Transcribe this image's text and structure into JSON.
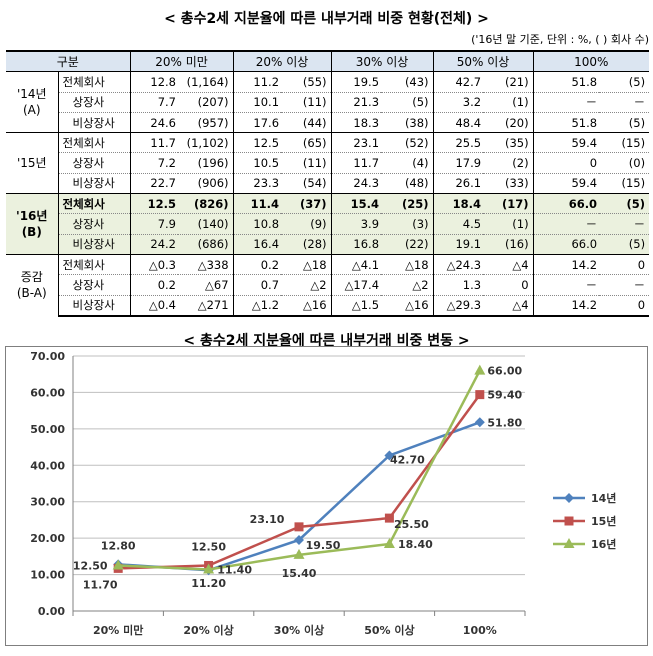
{
  "table_title": "< 총수2세 지분율에 따른 내부거래 비중 현황(전체) >",
  "unit_note": "('16년 말 기준, 단위 : %, ( ) 회사 수)",
  "table": {
    "headers": [
      "구분",
      "20% 미만",
      "20% 이상",
      "30% 이상",
      "50% 이상",
      "100%"
    ],
    "groups": [
      {
        "label": "'14년\n(A)",
        "rows": [
          {
            "name": "전체회사",
            "cells": [
              [
                "12.8",
                "(1,164)"
              ],
              [
                "11.2",
                "(55)"
              ],
              [
                "19.5",
                "(43)"
              ],
              [
                "42.7",
                "(21)"
              ],
              [
                "51.8",
                "(5)"
              ]
            ]
          },
          {
            "name": "상장사",
            "cells": [
              [
                "7.7",
                "(207)"
              ],
              [
                "10.1",
                "(11)"
              ],
              [
                "21.3",
                "(5)"
              ],
              [
                "3.2",
                "(1)"
              ],
              [
                "－",
                "－"
              ]
            ]
          },
          {
            "name": "비상장사",
            "cells": [
              [
                "24.6",
                "(957)"
              ],
              [
                "17.6",
                "(44)"
              ],
              [
                "18.3",
                "(38)"
              ],
              [
                "48.4",
                "(20)"
              ],
              [
                "51.8",
                "(5)"
              ]
            ]
          }
        ]
      },
      {
        "label": "'15년",
        "rows": [
          {
            "name": "전체회사",
            "cells": [
              [
                "11.7",
                "(1,102)"
              ],
              [
                "12.5",
                "(65)"
              ],
              [
                "23.1",
                "(52)"
              ],
              [
                "25.5",
                "(35)"
              ],
              [
                "59.4",
                "(15)"
              ]
            ]
          },
          {
            "name": "상장사",
            "cells": [
              [
                "7.2",
                "(196)"
              ],
              [
                "10.5",
                "(11)"
              ],
              [
                "11.7",
                "(4)"
              ],
              [
                "17.9",
                "(2)"
              ],
              [
                "0",
                "(0)"
              ]
            ]
          },
          {
            "name": "비상장사",
            "cells": [
              [
                "22.7",
                "(906)"
              ],
              [
                "23.3",
                "(54)"
              ],
              [
                "24.3",
                "(48)"
              ],
              [
                "26.1",
                "(33)"
              ],
              [
                "59.4",
                "(15)"
              ]
            ]
          }
        ]
      },
      {
        "label": "'16년\n(B)",
        "highlight": true,
        "rows": [
          {
            "name": "전체회사",
            "cells": [
              [
                "12.5",
                "(826)"
              ],
              [
                "11.4",
                "(37)"
              ],
              [
                "15.4",
                "(25)"
              ],
              [
                "18.4",
                "(17)"
              ],
              [
                "66.0",
                "(5)"
              ]
            ]
          },
          {
            "name": "상장사",
            "cells": [
              [
                "7.9",
                "(140)"
              ],
              [
                "10.8",
                "(9)"
              ],
              [
                "3.9",
                "(3)"
              ],
              [
                "4.5",
                "(1)"
              ],
              [
                "－",
                "－"
              ]
            ]
          },
          {
            "name": "비상장사",
            "cells": [
              [
                "24.2",
                "(686)"
              ],
              [
                "16.4",
                "(28)"
              ],
              [
                "16.8",
                "(22)"
              ],
              [
                "19.1",
                "(16)"
              ],
              [
                "66.0",
                "(5)"
              ]
            ]
          }
        ]
      },
      {
        "label": "증감\n(B-A)",
        "rows": [
          {
            "name": "전체회사",
            "cells": [
              [
                "△0.3",
                "△338"
              ],
              [
                "0.2",
                "△18"
              ],
              [
                "△4.1",
                "△18"
              ],
              [
                "△24.3",
                "△4"
              ],
              [
                "14.2",
                "0"
              ]
            ]
          },
          {
            "name": "상장사",
            "cells": [
              [
                "0.2",
                "△67"
              ],
              [
                "0.7",
                "△2"
              ],
              [
                "△17.4",
                "△2"
              ],
              [
                "1.3",
                "0"
              ],
              [
                "－",
                "－"
              ]
            ]
          },
          {
            "name": "비상장사",
            "cells": [
              [
                "△0.4",
                "△271"
              ],
              [
                "△1.2",
                "△16"
              ],
              [
                "△1.5",
                "△16"
              ],
              [
                "△29.3",
                "△4"
              ],
              [
                "14.2",
                "0"
              ]
            ]
          }
        ]
      }
    ]
  },
  "chart_title": "< 총수2세 지분율에 따른 내부거래 비중 변동 >",
  "chart_data": {
    "type": "line",
    "categories": [
      "20% 미만",
      "20% 이상",
      "30% 이상",
      "50% 이상",
      "100%"
    ],
    "series": [
      {
        "name": "14년",
        "values": [
          12.8,
          11.2,
          19.5,
          42.7,
          51.8
        ],
        "color": "#4f81bd",
        "marker": "diamond"
      },
      {
        "name": "15년",
        "values": [
          11.7,
          12.5,
          23.1,
          25.5,
          59.4
        ],
        "color": "#c0504d",
        "marker": "square"
      },
      {
        "name": "16년",
        "values": [
          12.5,
          11.4,
          15.4,
          18.4,
          66.0
        ],
        "color": "#9bbb59",
        "marker": "triangle"
      }
    ],
    "yticks": [
      "0.00",
      "10.00",
      "20.00",
      "30.00",
      "40.00",
      "50.00",
      "60.00",
      "70.00"
    ],
    "ylim": [
      0,
      70
    ],
    "grid": true,
    "legend_position": "right",
    "data_labels": [
      {
        "text": "12.80"
      },
      {
        "text": "12.50"
      },
      {
        "text": "11.70"
      },
      {
        "text": "11.20"
      },
      {
        "text": "12.50"
      },
      {
        "text": "11.40"
      },
      {
        "text": "23.10"
      },
      {
        "text": "19.50"
      },
      {
        "text": "15.40"
      },
      {
        "text": "42.70"
      },
      {
        "text": "25.50"
      },
      {
        "text": "18.40"
      },
      {
        "text": "66.00"
      },
      {
        "text": "59.40"
      },
      {
        "text": "51.80"
      }
    ]
  }
}
